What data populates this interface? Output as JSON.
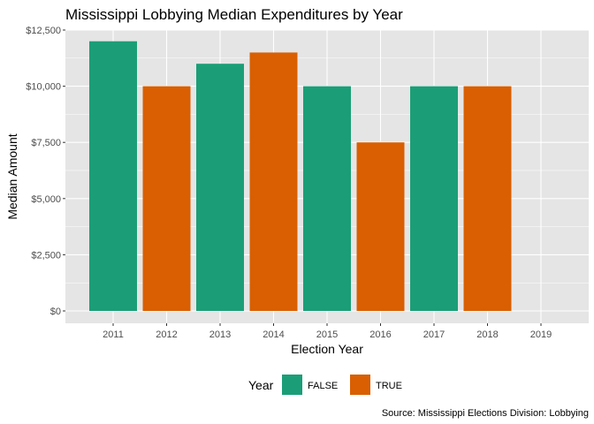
{
  "chart_data": {
    "type": "bar",
    "title": "Mississippi Lobbying Median Expenditures by Year",
    "xlabel": "Election Year",
    "ylabel": "Median Amount",
    "caption": "Source: Mississippi Elections Division: Lobbying",
    "categories": [
      "2011",
      "2012",
      "2013",
      "2014",
      "2015",
      "2016",
      "2017",
      "2018",
      "2019"
    ],
    "values": [
      12000,
      10000,
      11000,
      11500,
      10000,
      7500,
      10000,
      10000,
      null
    ],
    "fill_group": [
      "FALSE",
      "TRUE",
      "FALSE",
      "TRUE",
      "FALSE",
      "TRUE",
      "FALSE",
      "TRUE",
      null
    ],
    "ylim": [
      0,
      12500
    ],
    "yticks": [
      0,
      2500,
      5000,
      7500,
      10000,
      12500
    ],
    "ytick_labels": [
      "$0",
      "$2,500",
      "$5,000",
      "$7,500",
      "$10,000",
      "$12,500"
    ],
    "grid": true,
    "legend": {
      "title": "Year",
      "position": "bottom",
      "entries": [
        {
          "label": "FALSE",
          "color": "#1b9e77"
        },
        {
          "label": "TRUE",
          "color": "#d95f02"
        }
      ]
    },
    "colors": {
      "panel_background": "#e5e5e5",
      "grid_line": "#ffffff"
    }
  }
}
